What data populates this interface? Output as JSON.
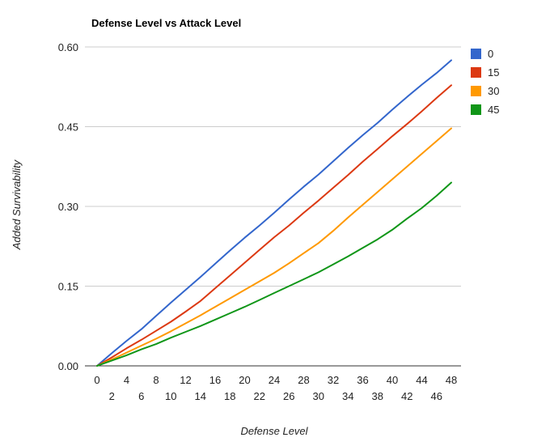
{
  "chart_data": {
    "type": "line",
    "title": "Defense Level vs Attack Level",
    "xlabel": "Defense Level",
    "ylabel": "Added Survivability",
    "x": [
      0,
      2,
      4,
      6,
      8,
      10,
      12,
      14,
      16,
      18,
      20,
      22,
      24,
      26,
      28,
      30,
      32,
      34,
      36,
      38,
      40,
      42,
      44,
      46,
      48
    ],
    "xlim": [
      0,
      48
    ],
    "ylim": [
      0,
      0.6
    ],
    "yticks": [
      "0.00",
      "0.15",
      "0.30",
      "0.45",
      "0.60"
    ],
    "xticks_upper": [
      "0",
      "4",
      "8",
      "12",
      "16",
      "20",
      "24",
      "28",
      "32",
      "36",
      "40",
      "44",
      "48"
    ],
    "xticks_lower": [
      "2",
      "6",
      "10",
      "14",
      "18",
      "22",
      "26",
      "30",
      "34",
      "38",
      "42",
      "46"
    ],
    "grid": true,
    "legend_position": "right",
    "series": [
      {
        "name": "0",
        "color": "#3366cc",
        "values": [
          0,
          0.024,
          0.047,
          0.069,
          0.094,
          0.119,
          0.143,
          0.167,
          0.192,
          0.217,
          0.241,
          0.264,
          0.288,
          0.313,
          0.337,
          0.36,
          0.385,
          0.41,
          0.434,
          0.457,
          0.482,
          0.506,
          0.529,
          0.551,
          0.575
        ]
      },
      {
        "name": "15",
        "color": "#dc3912",
        "values": [
          0,
          0.016,
          0.033,
          0.049,
          0.066,
          0.083,
          0.102,
          0.122,
          0.146,
          0.17,
          0.194,
          0.218,
          0.242,
          0.264,
          0.288,
          0.311,
          0.335,
          0.359,
          0.384,
          0.408,
          0.432,
          0.455,
          0.479,
          0.504,
          0.528
        ]
      },
      {
        "name": "30",
        "color": "#ff9900",
        "values": [
          0,
          0.012,
          0.025,
          0.038,
          0.051,
          0.065,
          0.08,
          0.095,
          0.111,
          0.127,
          0.143,
          0.159,
          0.175,
          0.193,
          0.212,
          0.231,
          0.254,
          0.279,
          0.303,
          0.327,
          0.351,
          0.375,
          0.399,
          0.423,
          0.447
        ]
      },
      {
        "name": "45",
        "color": "#109618",
        "values": [
          0,
          0.01,
          0.02,
          0.031,
          0.041,
          0.053,
          0.064,
          0.075,
          0.087,
          0.099,
          0.111,
          0.124,
          0.137,
          0.15,
          0.163,
          0.176,
          0.191,
          0.206,
          0.222,
          0.238,
          0.256,
          0.277,
          0.297,
          0.32,
          0.345
        ]
      }
    ]
  }
}
